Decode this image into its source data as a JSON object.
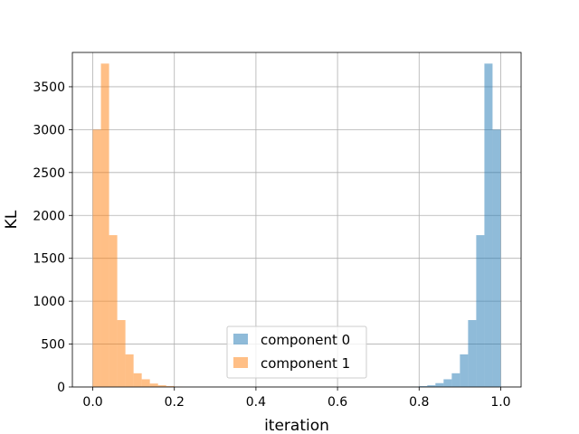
{
  "chart_data": {
    "type": "bar",
    "title": "",
    "xlabel": "iteration",
    "ylabel": "KL",
    "xlim": [
      -0.05,
      1.05
    ],
    "ylim": [
      0,
      3900
    ],
    "xticks": [
      0.0,
      0.2,
      0.4,
      0.6,
      0.8,
      1.0
    ],
    "xtick_labels": [
      "0.0",
      "0.2",
      "0.4",
      "0.6",
      "0.8",
      "1.0"
    ],
    "yticks": [
      0,
      500,
      1000,
      1500,
      2000,
      2500,
      3000,
      3500
    ],
    "ytick_labels": [
      "0",
      "500",
      "1000",
      "1500",
      "2000",
      "2500",
      "3000",
      "3500"
    ],
    "grid": true,
    "legend_position": "bottom-center",
    "bin_width": 0.02,
    "series": [
      {
        "name": "component 0",
        "color": "#1f77b4",
        "opacity": 0.5,
        "bin_starts": [
          0.78,
          0.8,
          0.82,
          0.84,
          0.86,
          0.88,
          0.9,
          0.92,
          0.94,
          0.96,
          0.98
        ],
        "counts": [
          3,
          10,
          20,
          45,
          90,
          160,
          380,
          780,
          1770,
          3770,
          3000
        ]
      },
      {
        "name": "component 1",
        "color": "#ff7f0e",
        "opacity": 0.5,
        "bin_starts": [
          0.0,
          0.02,
          0.04,
          0.06,
          0.08,
          0.1,
          0.12,
          0.14,
          0.16,
          0.18,
          0.2
        ],
        "counts": [
          3000,
          3770,
          1770,
          780,
          380,
          160,
          90,
          40,
          20,
          10,
          3
        ]
      }
    ]
  }
}
